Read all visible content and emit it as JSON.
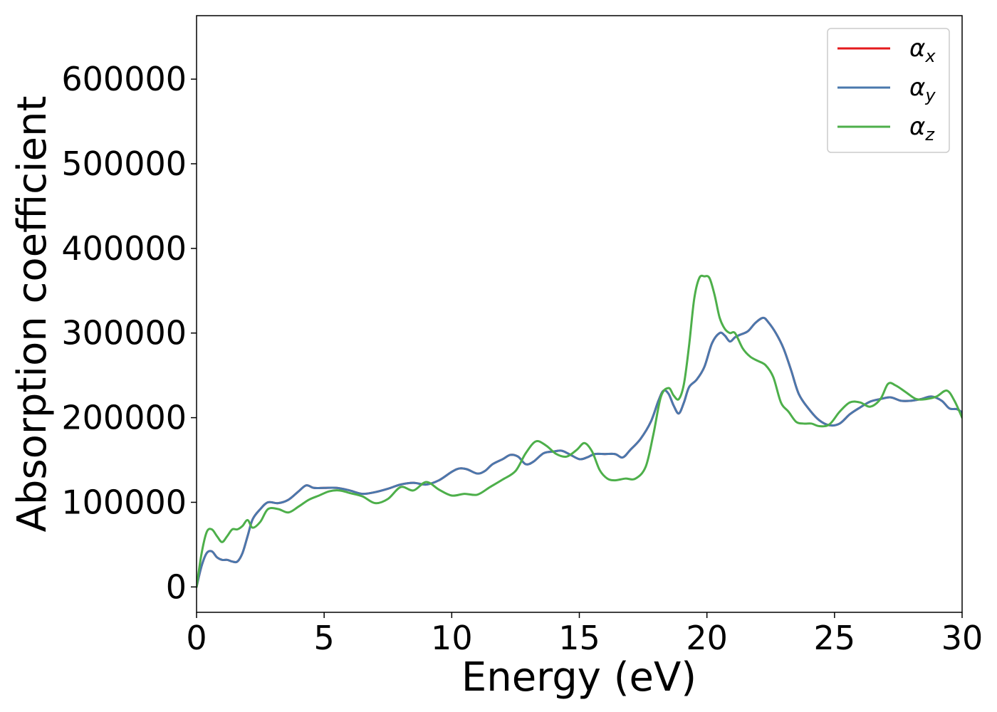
{
  "chart_data": {
    "type": "line",
    "xlabel": "Energy (eV)",
    "ylabel": "Absorption coefficient",
    "xlim": [
      0,
      30
    ],
    "ylim": [
      -30000,
      675000
    ],
    "xticks": [
      0,
      5,
      10,
      15,
      20,
      25,
      30
    ],
    "xtick_labels": [
      "0",
      "5",
      "10",
      "15",
      "20",
      "25",
      "30"
    ],
    "yticks": [
      0,
      100000,
      200000,
      300000,
      400000,
      500000,
      600000
    ],
    "ytick_labels": [
      "0",
      "100000",
      "200000",
      "300000",
      "400000",
      "500000",
      "600000"
    ],
    "grid": false,
    "legend_position": "top-right",
    "series": [
      {
        "name": "α",
        "subscript": "x",
        "color": "#e41a1c",
        "x": [
          0,
          0.2,
          0.4,
          0.6,
          0.8,
          1.0,
          1.2,
          1.4,
          1.6,
          1.8,
          2.0,
          2.2,
          2.5,
          2.8,
          3.2,
          3.6,
          4.0,
          4.3,
          4.6,
          5.0,
          5.5,
          6.0,
          6.5,
          7.0,
          7.5,
          8.0,
          8.5,
          9.0,
          9.5,
          10.0,
          10.3,
          10.6,
          11.0,
          11.3,
          11.6,
          12.0,
          12.3,
          12.6,
          12.9,
          13.2,
          13.6,
          14.0,
          14.3,
          14.6,
          15.0,
          15.3,
          15.6,
          16.0,
          16.4,
          16.7,
          17.0,
          17.4,
          17.8,
          18.1,
          18.3,
          18.5,
          18.7,
          18.9,
          19.1,
          19.3,
          19.6,
          19.9,
          20.2,
          20.5,
          20.7,
          20.9,
          21.1,
          21.3,
          21.6,
          21.9,
          22.2,
          22.4,
          22.7,
          23.0,
          23.3,
          23.6,
          24.0,
          24.4,
          24.8,
          25.2,
          25.6,
          26.0,
          26.4,
          26.8,
          27.2,
          27.6,
          28.0,
          28.4,
          28.8,
          29.2,
          29.5,
          29.8,
          30.0
        ],
        "y": [
          0,
          25000,
          40000,
          42000,
          35000,
          32000,
          32000,
          30000,
          30000,
          40000,
          60000,
          80000,
          92000,
          100000,
          99000,
          103000,
          113000,
          120000,
          117000,
          117000,
          117000,
          114000,
          110000,
          112000,
          116000,
          121000,
          123000,
          121000,
          126000,
          136000,
          140000,
          139000,
          134000,
          137000,
          145000,
          151000,
          156000,
          154000,
          145000,
          148000,
          158000,
          160000,
          161000,
          157000,
          151000,
          153000,
          157000,
          157000,
          157000,
          153000,
          162000,
          175000,
          195000,
          220000,
          232000,
          228000,
          214000,
          205000,
          218000,
          236000,
          245000,
          260000,
          288000,
          300000,
          297000,
          290000,
          295000,
          298000,
          302000,
          312000,
          318000,
          313000,
          300000,
          282000,
          256000,
          228000,
          210000,
          197000,
          191000,
          193000,
          204000,
          212000,
          219000,
          222000,
          224000,
          220000,
          220000,
          222000,
          225000,
          220000,
          211000,
          210000,
          206000
        ]
      },
      {
        "name": "α",
        "subscript": "y",
        "color": "#4a78ad",
        "x": [
          0,
          0.2,
          0.4,
          0.6,
          0.8,
          1.0,
          1.2,
          1.4,
          1.6,
          1.8,
          2.0,
          2.2,
          2.5,
          2.8,
          3.2,
          3.6,
          4.0,
          4.3,
          4.6,
          5.0,
          5.5,
          6.0,
          6.5,
          7.0,
          7.5,
          8.0,
          8.5,
          9.0,
          9.5,
          10.0,
          10.3,
          10.6,
          11.0,
          11.3,
          11.6,
          12.0,
          12.3,
          12.6,
          12.9,
          13.2,
          13.6,
          14.0,
          14.3,
          14.6,
          15.0,
          15.3,
          15.6,
          16.0,
          16.4,
          16.7,
          17.0,
          17.4,
          17.8,
          18.1,
          18.3,
          18.5,
          18.7,
          18.9,
          19.1,
          19.3,
          19.6,
          19.9,
          20.2,
          20.5,
          20.7,
          20.9,
          21.1,
          21.3,
          21.6,
          21.9,
          22.2,
          22.4,
          22.7,
          23.0,
          23.3,
          23.6,
          24.0,
          24.4,
          24.8,
          25.2,
          25.6,
          26.0,
          26.4,
          26.8,
          27.2,
          27.6,
          28.0,
          28.4,
          28.8,
          29.2,
          29.5,
          29.8,
          30.0
        ],
        "y": [
          0,
          25000,
          40000,
          42000,
          35000,
          32000,
          32000,
          30000,
          30000,
          40000,
          60000,
          80000,
          92000,
          100000,
          99000,
          103000,
          113000,
          120000,
          117000,
          117000,
          117000,
          114000,
          110000,
          112000,
          116000,
          121000,
          123000,
          121000,
          126000,
          136000,
          140000,
          139000,
          134000,
          137000,
          145000,
          151000,
          156000,
          154000,
          145000,
          148000,
          158000,
          160000,
          161000,
          157000,
          151000,
          153000,
          157000,
          157000,
          157000,
          153000,
          162000,
          175000,
          195000,
          220000,
          232000,
          228000,
          214000,
          205000,
          218000,
          236000,
          245000,
          260000,
          288000,
          300000,
          297000,
          290000,
          295000,
          298000,
          302000,
          312000,
          318000,
          313000,
          300000,
          282000,
          256000,
          228000,
          210000,
          197000,
          191000,
          193000,
          204000,
          212000,
          219000,
          222000,
          224000,
          220000,
          220000,
          222000,
          225000,
          220000,
          211000,
          210000,
          206000
        ]
      },
      {
        "name": "α",
        "subscript": "z",
        "color": "#4daf4a",
        "x": [
          0,
          0.2,
          0.4,
          0.6,
          0.8,
          1.0,
          1.2,
          1.4,
          1.6,
          1.8,
          2.0,
          2.2,
          2.5,
          2.8,
          3.2,
          3.6,
          4.0,
          4.4,
          4.8,
          5.2,
          5.6,
          6.0,
          6.5,
          7.0,
          7.5,
          8.0,
          8.5,
          9.0,
          9.5,
          10.0,
          10.5,
          11.0,
          11.5,
          12.0,
          12.5,
          12.9,
          13.3,
          13.7,
          14.1,
          14.5,
          14.9,
          15.2,
          15.5,
          15.8,
          16.1,
          16.4,
          16.8,
          17.2,
          17.6,
          17.9,
          18.2,
          18.5,
          18.7,
          18.9,
          19.1,
          19.3,
          19.5,
          19.7,
          19.9,
          20.1,
          20.3,
          20.5,
          20.7,
          20.9,
          21.1,
          21.4,
          21.7,
          22.0,
          22.3,
          22.6,
          22.9,
          23.2,
          23.5,
          23.8,
          24.1,
          24.4,
          24.8,
          25.2,
          25.6,
          26.0,
          26.4,
          26.8,
          27.1,
          27.4,
          27.8,
          28.2,
          28.6,
          29.0,
          29.4,
          29.7,
          30.0
        ],
        "y": [
          0,
          40000,
          65000,
          68000,
          60000,
          53000,
          60000,
          68000,
          68000,
          72000,
          79000,
          70000,
          77000,
          92000,
          92000,
          88000,
          95000,
          103000,
          108000,
          113000,
          114000,
          111000,
          107000,
          99000,
          104000,
          118000,
          114000,
          124000,
          115000,
          108000,
          110000,
          109000,
          118000,
          127000,
          137000,
          158000,
          172000,
          167000,
          157000,
          154000,
          162000,
          170000,
          160000,
          138000,
          128000,
          126000,
          128000,
          128000,
          142000,
          180000,
          225000,
          235000,
          226000,
          222000,
          240000,
          285000,
          340000,
          365000,
          367000,
          365000,
          345000,
          318000,
          305000,
          300000,
          300000,
          282000,
          272000,
          267000,
          262000,
          248000,
          218000,
          207000,
          195000,
          193000,
          193000,
          190000,
          192000,
          207000,
          218000,
          218000,
          213000,
          222000,
          240000,
          238000,
          230000,
          222000,
          222000,
          225000,
          232000,
          220000,
          200000
        ]
      }
    ]
  }
}
